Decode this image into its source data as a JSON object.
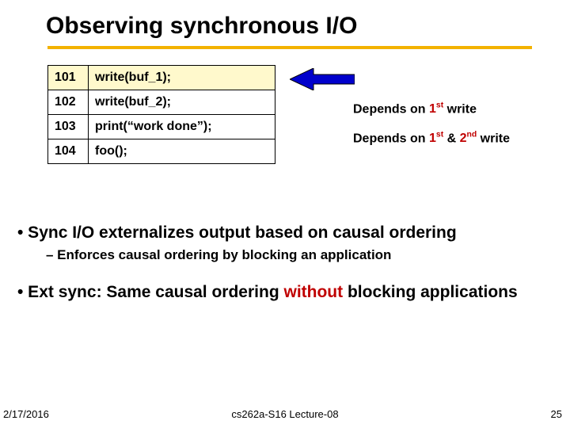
{
  "title": "Observing synchronous I/O",
  "colors": {
    "rule": "#f3b200",
    "highlight_bg": "#fff9cc",
    "red": "#c00000",
    "arrow_fill": "#0000cc",
    "arrow_stroke": "#000000"
  },
  "code": {
    "rows": [
      {
        "n": "101",
        "text": "write(buf_1);",
        "hl": true
      },
      {
        "n": "102",
        "text": "write(buf_2);",
        "hl": false
      },
      {
        "n": "103",
        "text": "print(“work done”);",
        "hl": false
      },
      {
        "n": "104",
        "text": "foo();",
        "hl": false
      }
    ]
  },
  "deps": {
    "d1_prefix": "Depends on ",
    "d1_red": "1",
    "d1_sup": "st",
    "d1_suffix": " write",
    "d2_prefix": "Depends on ",
    "d2_red1": "1",
    "d2_sup1": "st",
    "d2_mid": " & ",
    "d2_red2": "2",
    "d2_sup2": "nd",
    "d2_suffix": " write"
  },
  "bullets": {
    "b1_pre": "•  Sync I/O externalizes output based on ",
    "b1_em": "causal ordering",
    "b1_sub": "– Enforces causal ordering by blocking an application",
    "b2_pre": "•  Ext sync: Same causal ordering ",
    "b2_red": "without",
    "b2_post": " blocking applications"
  },
  "footer": {
    "date": "2/17/2016",
    "center": "cs262a-S16 Lecture-08",
    "num": "25"
  }
}
